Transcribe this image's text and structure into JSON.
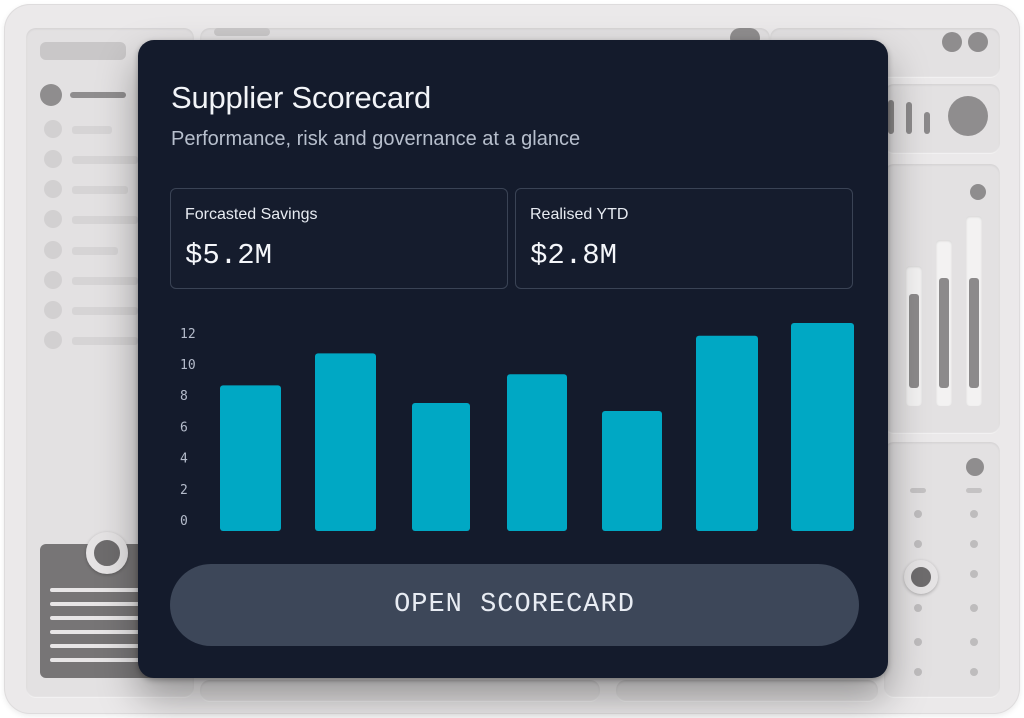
{
  "card": {
    "title": "Supplier Scorecard",
    "subtitle": "Performance, risk and governance at a glance"
  },
  "stats": [
    {
      "label": "Forcasted Savings",
      "value": "$5.2M"
    },
    {
      "label": "Realised YTD",
      "value": "$2.8M"
    }
  ],
  "chart_data": {
    "type": "bar",
    "categories": [
      "",
      "",
      "",
      "",
      "",
      "",
      ""
    ],
    "values": [
      9.1,
      11.1,
      8.0,
      9.8,
      7.5,
      12.2,
      13.0
    ],
    "ylim": [
      0,
      12
    ],
    "yticks": [
      "0",
      "2",
      "4",
      "6",
      "8",
      "10",
      "12"
    ],
    "bar_color": "#00a8c4",
    "grid": false
  },
  "button": {
    "label": "OPEN SCORECARD"
  },
  "colors": {
    "card_bg": "#141b2c",
    "accent": "#00a8c4",
    "button_bg": "#3d4759"
  }
}
